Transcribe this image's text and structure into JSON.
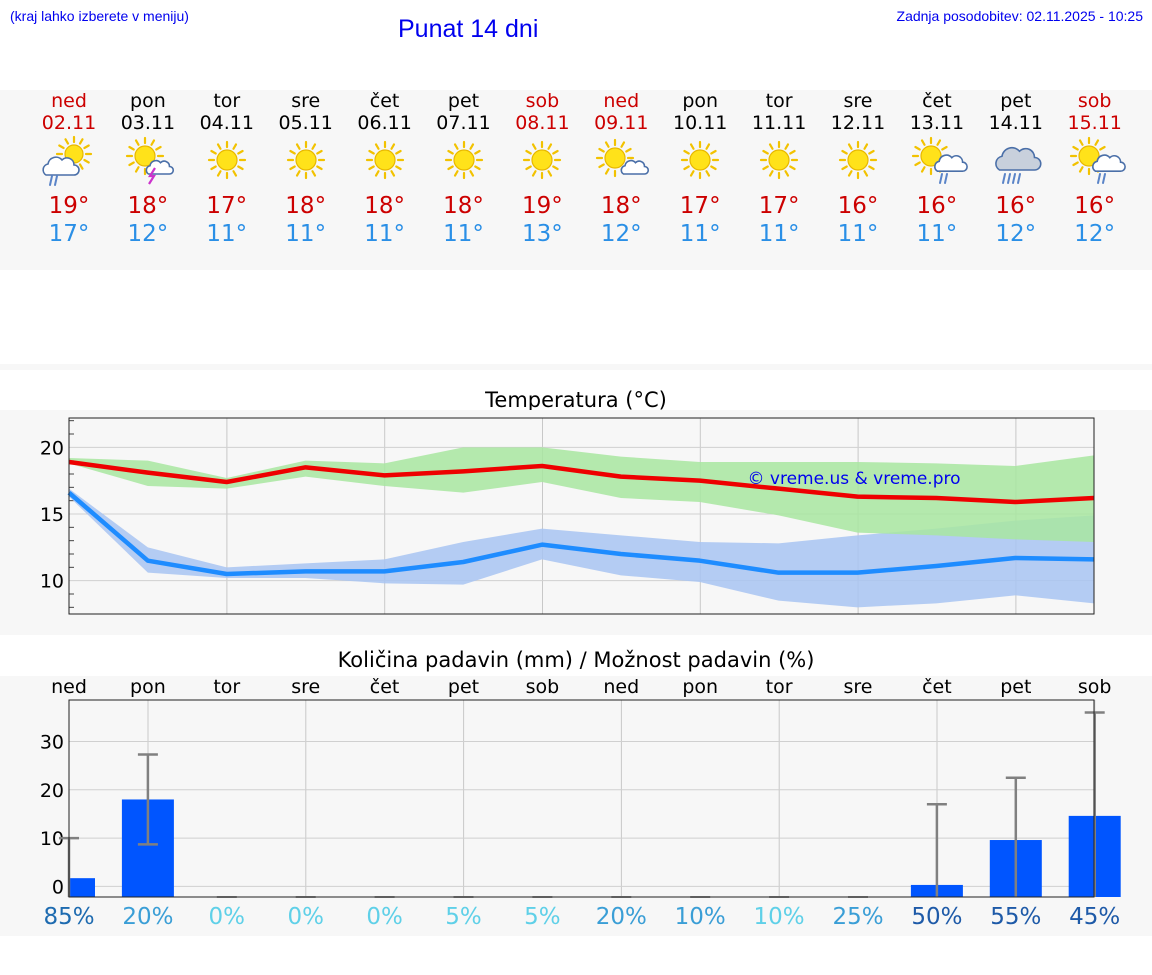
{
  "header": {
    "hint": "(kraj lahko izberete v meniju)",
    "title": "Punat 14 dni",
    "updated": "Zadnja posodobitev: 02.11.2025 - 10:25"
  },
  "days": [
    {
      "name": "ned",
      "date": "02.11",
      "weekend": true,
      "icon": "sun-rain-icon",
      "tmax": "19°",
      "tmin": "17°"
    },
    {
      "name": "pon",
      "date": "03.11",
      "weekend": false,
      "icon": "sun-thunderstorm-icon",
      "tmax": "18°",
      "tmin": "12°"
    },
    {
      "name": "tor",
      "date": "04.11",
      "weekend": false,
      "icon": "sun-icon",
      "tmax": "17°",
      "tmin": "11°"
    },
    {
      "name": "sre",
      "date": "05.11",
      "weekend": false,
      "icon": "sun-icon",
      "tmax": "18°",
      "tmin": "11°"
    },
    {
      "name": "čet",
      "date": "06.11",
      "weekend": false,
      "icon": "sun-icon",
      "tmax": "18°",
      "tmin": "11°"
    },
    {
      "name": "pet",
      "date": "07.11",
      "weekend": false,
      "icon": "sun-icon",
      "tmax": "18°",
      "tmin": "11°"
    },
    {
      "name": "sob",
      "date": "08.11",
      "weekend": true,
      "icon": "sun-icon",
      "tmax": "19°",
      "tmin": "13°"
    },
    {
      "name": "ned",
      "date": "09.11",
      "weekend": true,
      "icon": "sun-cloud-icon",
      "tmax": "18°",
      "tmin": "12°"
    },
    {
      "name": "pon",
      "date": "10.11",
      "weekend": false,
      "icon": "sun-icon",
      "tmax": "17°",
      "tmin": "11°"
    },
    {
      "name": "tor",
      "date": "11.11",
      "weekend": false,
      "icon": "sun-icon",
      "tmax": "17°",
      "tmin": "11°"
    },
    {
      "name": "sre",
      "date": "12.11",
      "weekend": false,
      "icon": "sun-icon",
      "tmax": "16°",
      "tmin": "11°"
    },
    {
      "name": "čet",
      "date": "13.11",
      "weekend": false,
      "icon": "sun-cloud-rain-icon",
      "tmax": "16°",
      "tmin": "11°"
    },
    {
      "name": "pet",
      "date": "14.11",
      "weekend": false,
      "icon": "cloud-heavy-rain-icon",
      "tmax": "16°",
      "tmin": "12°"
    },
    {
      "name": "sob",
      "date": "15.11",
      "weekend": true,
      "icon": "sun-cloud-rain-icon",
      "tmax": "16°",
      "tmin": "12°"
    }
  ],
  "colors": {
    "weekend": "#cc0000",
    "weekday": "#000000",
    "max": "#cc0000",
    "min": "#2a8fe6",
    "maxLine": "#ee0000",
    "minLine": "#1e8cff",
    "maxBand": "#a8e6a0",
    "minBand": "#a8c4f2",
    "precip": "#0055ff"
  },
  "chart_data": [
    {
      "type": "line",
      "title": "Temperatura (°C)",
      "watermark": "© vreme.us & vreme.pro",
      "xlabel": "",
      "ylabel": "",
      "ylim": [
        7.5,
        22.2
      ],
      "yticks": [
        10,
        15,
        20
      ],
      "x": [
        0,
        1,
        2,
        3,
        4,
        5,
        6,
        7,
        8,
        9,
        10,
        11,
        12,
        13
      ],
      "series": [
        {
          "name": "max",
          "values": [
            18.9,
            18.1,
            17.4,
            18.5,
            17.9,
            18.2,
            18.6,
            17.8,
            17.5,
            16.9,
            16.3,
            16.2,
            15.9,
            16.2
          ],
          "band_low": [
            18.8,
            17.1,
            16.9,
            17.8,
            17.1,
            16.6,
            17.4,
            16.2,
            15.9,
            14.9,
            13.6,
            13.4,
            13.1,
            12.9
          ],
          "band_high": [
            19.2,
            19.0,
            17.7,
            19.0,
            18.8,
            20.0,
            20.0,
            19.3,
            18.9,
            18.9,
            18.9,
            18.8,
            18.6,
            19.4
          ]
        },
        {
          "name": "min",
          "values": [
            16.6,
            11.5,
            10.5,
            10.7,
            10.7,
            11.4,
            12.7,
            12.0,
            11.5,
            10.6,
            10.6,
            11.1,
            11.7,
            11.6
          ],
          "band_low": [
            16.3,
            10.6,
            10.2,
            10.2,
            9.8,
            9.7,
            11.6,
            10.4,
            9.9,
            8.5,
            8.0,
            8.3,
            8.9,
            8.3
          ],
          "band_high": [
            16.9,
            12.5,
            11.0,
            11.3,
            11.6,
            12.9,
            13.9,
            13.4,
            12.9,
            12.8,
            13.4,
            13.9,
            14.5,
            14.9
          ]
        }
      ]
    },
    {
      "type": "bar",
      "title": "Količina padavin (mm) / Možnost padavin (%)",
      "categories": [
        "ned",
        "pon",
        "tor",
        "sre",
        "čet",
        "pet",
        "sob",
        "ned",
        "pon",
        "tor",
        "sre",
        "čet",
        "pet",
        "sob"
      ],
      "values": [
        1.7,
        18.0,
        0,
        0,
        0,
        0,
        0,
        0,
        0,
        0,
        0,
        0.3,
        9.6,
        14.6
      ],
      "error_high": [
        10.0,
        27.3,
        0,
        0,
        0,
        0,
        0,
        0,
        0,
        0,
        0,
        17.0,
        22.5,
        36.0
      ],
      "error_low": [
        0,
        8.7,
        0,
        0,
        0,
        0,
        0,
        0,
        0,
        0,
        0,
        0,
        0,
        0
      ],
      "ylim": [
        -2.2,
        38.6
      ],
      "yticks": [
        0,
        10,
        20,
        30
      ],
      "probability": [
        "85%",
        "20%",
        "0%",
        "0%",
        "0%",
        "5%",
        "5%",
        "20%",
        "10%",
        "10%",
        "25%",
        "50%",
        "55%",
        "45%"
      ],
      "probability_colors": [
        "#1e6bb0",
        "#3a9ed6",
        "#5fd0e8",
        "#5fd0e8",
        "#5fd0e8",
        "#5fd0e8",
        "#5fd0e8",
        "#3a9ed6",
        "#3a9ed6",
        "#5fd0e8",
        "#3a9ed6",
        "#1e5aa8",
        "#1e5aa8",
        "#1e5aa8"
      ]
    }
  ]
}
